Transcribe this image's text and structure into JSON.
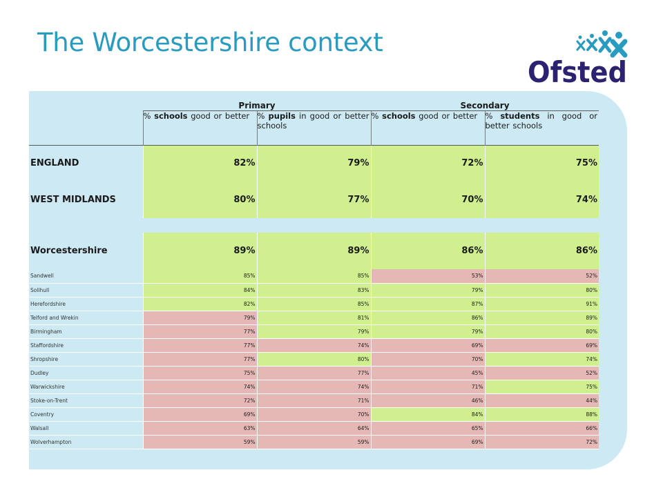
{
  "title": "The Worcestershire context",
  "logo": {
    "text": "Ofsted",
    "icon": "ofsted-stars-logo",
    "color": "#2b2370",
    "star_color": "#2a9bc0"
  },
  "colors": {
    "good": "#d0ef8e",
    "below": "#e6b8b5",
    "panel": "#cde9f4",
    "title": "#2a9bc0"
  },
  "table": {
    "groups": [
      "Primary",
      "Secondary"
    ],
    "columns": [
      {
        "pre": "%",
        "bold": "schools",
        "post": "good or better"
      },
      {
        "pre": "%",
        "bold": "pupils",
        "post": "in good or better schools"
      },
      {
        "pre": "%",
        "bold": "schools",
        "post": "good or better"
      },
      {
        "pre": "%",
        "bold": "students",
        "post": "in good or better schools"
      }
    ],
    "headline_rows": [
      {
        "name": "ENGLAND",
        "values": [
          "82%",
          "79%",
          "72%",
          "75%"
        ]
      },
      {
        "name": "WEST MIDLANDS",
        "values": [
          "80%",
          "77%",
          "70%",
          "74%"
        ]
      }
    ],
    "focus_row": {
      "name": "Worcestershire",
      "values": [
        "89%",
        "89%",
        "86%",
        "86%"
      ]
    },
    "rows": [
      {
        "name": "Sandwell",
        "values": [
          "85%",
          "85%",
          "53%",
          "52%"
        ],
        "status": [
          "good",
          "good",
          "below",
          "below"
        ]
      },
      {
        "name": "Solihull",
        "values": [
          "84%",
          "83%",
          "79%",
          "80%"
        ],
        "status": [
          "good",
          "good",
          "good",
          "good"
        ]
      },
      {
        "name": "Herefordshire",
        "values": [
          "82%",
          "85%",
          "87%",
          "91%"
        ],
        "status": [
          "good",
          "good",
          "good",
          "good"
        ]
      },
      {
        "name": "Telford and Wrekin",
        "values": [
          "79%",
          "81%",
          "86%",
          "89%"
        ],
        "status": [
          "below",
          "good",
          "good",
          "good"
        ]
      },
      {
        "name": "Birmingham",
        "values": [
          "77%",
          "79%",
          "79%",
          "80%"
        ],
        "status": [
          "below",
          "good",
          "good",
          "good"
        ]
      },
      {
        "name": "Staffordshire",
        "values": [
          "77%",
          "74%",
          "69%",
          "69%"
        ],
        "status": [
          "below",
          "below",
          "below",
          "below"
        ]
      },
      {
        "name": "Shropshire",
        "values": [
          "77%",
          "80%",
          "70%",
          "74%"
        ],
        "status": [
          "below",
          "good",
          "below",
          "good"
        ]
      },
      {
        "name": "Dudley",
        "values": [
          "75%",
          "77%",
          "45%",
          "52%"
        ],
        "status": [
          "below",
          "below",
          "below",
          "below"
        ]
      },
      {
        "name": "Warwickshire",
        "values": [
          "74%",
          "74%",
          "71%",
          "75%"
        ],
        "status": [
          "below",
          "below",
          "below",
          "good"
        ]
      },
      {
        "name": "Stoke-on-Trent",
        "values": [
          "72%",
          "71%",
          "46%",
          "44%"
        ],
        "status": [
          "below",
          "below",
          "below",
          "below"
        ]
      },
      {
        "name": "Coventry",
        "values": [
          "69%",
          "70%",
          "84%",
          "88%"
        ],
        "status": [
          "below",
          "below",
          "good",
          "good"
        ]
      },
      {
        "name": "Walsall",
        "values": [
          "63%",
          "64%",
          "65%",
          "66%"
        ],
        "status": [
          "below",
          "below",
          "below",
          "below"
        ]
      },
      {
        "name": "Wolverhampton",
        "values": [
          "59%",
          "59%",
          "69%",
          "72%"
        ],
        "status": [
          "below",
          "below",
          "below",
          "below"
        ]
      }
    ]
  }
}
